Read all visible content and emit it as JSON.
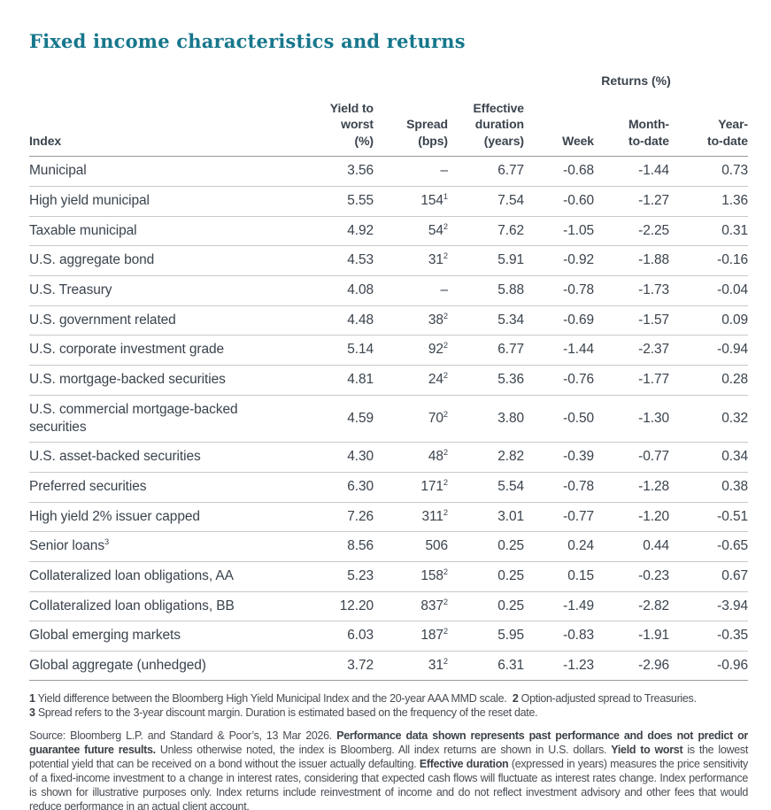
{
  "title": "Fixed income characteristics and returns",
  "colors": {
    "title": "#17778c",
    "text": "#3a434d",
    "footnote": "#474c52",
    "footnote_bold": "#3d4248",
    "row_line": "#c9c9c9",
    "strong_line": "#999999"
  },
  "table": {
    "returns_group_label": "Returns (%)",
    "columns": [
      {
        "key": "name",
        "align": "left",
        "label_lines": [
          "Index"
        ]
      },
      {
        "key": "ytw",
        "align": "right",
        "label_lines": [
          "Yield to",
          "worst",
          "(%)"
        ]
      },
      {
        "key": "spread",
        "align": "right",
        "label_lines": [
          "Spread",
          "(bps)"
        ]
      },
      {
        "key": "duration",
        "align": "right",
        "label_lines": [
          "Effective",
          "duration",
          "(years)"
        ]
      },
      {
        "key": "week",
        "align": "right",
        "label_lines": [
          "Week"
        ]
      },
      {
        "key": "mtd",
        "align": "right",
        "label_lines": [
          "Month-",
          "to-date"
        ]
      },
      {
        "key": "ytd",
        "align": "right",
        "label_lines": [
          "Year-",
          "to-date"
        ]
      }
    ],
    "rows": [
      {
        "name": "Municipal",
        "name_sup": "",
        "ytw": "3.56",
        "spread": "–",
        "spread_sup": "",
        "duration": "6.77",
        "week": "-0.68",
        "mtd": "-1.44",
        "ytd": "0.73"
      },
      {
        "name": "High yield municipal",
        "name_sup": "",
        "ytw": "5.55",
        "spread": "154",
        "spread_sup": "1",
        "duration": "7.54",
        "week": "-0.60",
        "mtd": "-1.27",
        "ytd": "1.36"
      },
      {
        "name": "Taxable municipal",
        "name_sup": "",
        "ytw": "4.92",
        "spread": "54",
        "spread_sup": "2",
        "duration": "7.62",
        "week": "-1.05",
        "mtd": "-2.25",
        "ytd": "0.31"
      },
      {
        "name": "U.S. aggregate bond",
        "name_sup": "",
        "ytw": "4.53",
        "spread": "31",
        "spread_sup": "2",
        "duration": "5.91",
        "week": "-0.92",
        "mtd": "-1.88",
        "ytd": "-0.16"
      },
      {
        "name": "U.S. Treasury",
        "name_sup": "",
        "ytw": "4.08",
        "spread": "–",
        "spread_sup": "",
        "duration": "5.88",
        "week": "-0.78",
        "mtd": "-1.73",
        "ytd": "-0.04"
      },
      {
        "name": "U.S. government related",
        "name_sup": "",
        "ytw": "4.48",
        "spread": "38",
        "spread_sup": "2",
        "duration": "5.34",
        "week": "-0.69",
        "mtd": "-1.57",
        "ytd": "0.09"
      },
      {
        "name": "U.S. corporate investment grade",
        "name_sup": "",
        "ytw": "5.14",
        "spread": "92",
        "spread_sup": "2",
        "duration": "6.77",
        "week": "-1.44",
        "mtd": "-2.37",
        "ytd": "-0.94"
      },
      {
        "name": "U.S. mortgage-backed securities",
        "name_sup": "",
        "ytw": "4.81",
        "spread": "24",
        "spread_sup": "2",
        "duration": "5.36",
        "week": "-0.76",
        "mtd": "-1.77",
        "ytd": "0.28"
      },
      {
        "name": "U.S. commercial mortgage-backed securities",
        "name_sup": "",
        "ytw": "4.59",
        "spread": "70",
        "spread_sup": "2",
        "duration": "3.80",
        "week": "-0.50",
        "mtd": "-1.30",
        "ytd": "0.32"
      },
      {
        "name": "U.S. asset-backed securities",
        "name_sup": "",
        "ytw": "4.30",
        "spread": "48",
        "spread_sup": "2",
        "duration": "2.82",
        "week": "-0.39",
        "mtd": "-0.77",
        "ytd": "0.34"
      },
      {
        "name": "Preferred securities",
        "name_sup": "",
        "ytw": "6.30",
        "spread": "171",
        "spread_sup": "2",
        "duration": "5.54",
        "week": "-0.78",
        "mtd": "-1.28",
        "ytd": "0.38"
      },
      {
        "name": "High yield 2% issuer capped",
        "name_sup": "",
        "ytw": "7.26",
        "spread": "311",
        "spread_sup": "2",
        "duration": "3.01",
        "week": "-0.77",
        "mtd": "-1.20",
        "ytd": "-0.51"
      },
      {
        "name": "Senior loans",
        "name_sup": "3",
        "ytw": "8.56",
        "spread": "506",
        "spread_sup": "",
        "duration": "0.25",
        "week": "0.24",
        "mtd": "0.44",
        "ytd": "-0.65"
      },
      {
        "name": "Collateralized loan obligations, AA",
        "name_sup": "",
        "ytw": "5.23",
        "spread": "158",
        "spread_sup": "2",
        "duration": "0.25",
        "week": "0.15",
        "mtd": "-0.23",
        "ytd": "0.67"
      },
      {
        "name": "Collateralized loan obligations, BB",
        "name_sup": "",
        "ytw": "12.20",
        "spread": "837",
        "spread_sup": "2",
        "duration": "0.25",
        "week": "-1.49",
        "mtd": "-2.82",
        "ytd": "-3.94"
      },
      {
        "name": "Global emerging markets",
        "name_sup": "",
        "ytw": "6.03",
        "spread": "187",
        "spread_sup": "2",
        "duration": "5.95",
        "week": "-0.83",
        "mtd": "-1.91",
        "ytd": "-0.35"
      },
      {
        "name": "Global aggregate (unhedged)",
        "name_sup": "",
        "ytw": "3.72",
        "spread": "31",
        "spread_sup": "2",
        "duration": "6.31",
        "week": "-1.23",
        "mtd": "-2.96",
        "ytd": "-0.96"
      }
    ]
  },
  "footnotes": [
    {
      "segments": [
        {
          "text": "1",
          "bold": true
        },
        {
          "text": " Yield difference between the Bloomberg High Yield Municipal Index and the 20-year AAA MMD scale.  ",
          "bold": false
        },
        {
          "text": "2",
          "bold": true
        },
        {
          "text": " Option-adjusted spread to Treasuries.",
          "bold": false
        }
      ]
    },
    {
      "segments": [
        {
          "text": "3",
          "bold": true
        },
        {
          "text": " Spread refers to the 3-year discount margin. Duration is estimated based on the frequency of the reset date.",
          "bold": false
        }
      ]
    }
  ],
  "source": {
    "segments": [
      {
        "text": "Source: Bloomberg L.P. and Standard & Poor’s, 13 Mar 2026. ",
        "bold": false
      },
      {
        "text": "Performance data shown represents past performance and does not predict or guarantee future results.",
        "bold": true
      },
      {
        "text": " Unless otherwise noted, the index is Bloomberg. All index returns are shown in U.S. dollars. ",
        "bold": false
      },
      {
        "text": "Yield to worst",
        "bold": true
      },
      {
        "text": " is the lowest potential yield that can be received on a bond without the issuer actually defaulting. ",
        "bold": false
      },
      {
        "text": "Effective duration",
        "bold": true
      },
      {
        "text": " (expressed in years) measures the price sensitivity of a fixed-income investment to a change in interest rates, considering that expected cash flows will fluctuate as interest rates change. Index performance is shown for illustrative purposes only. Index returns include reinvestment of income and do not reflect investment advisory and other fees that would reduce performance in an actual client account.",
        "bold": false
      }
    ]
  }
}
